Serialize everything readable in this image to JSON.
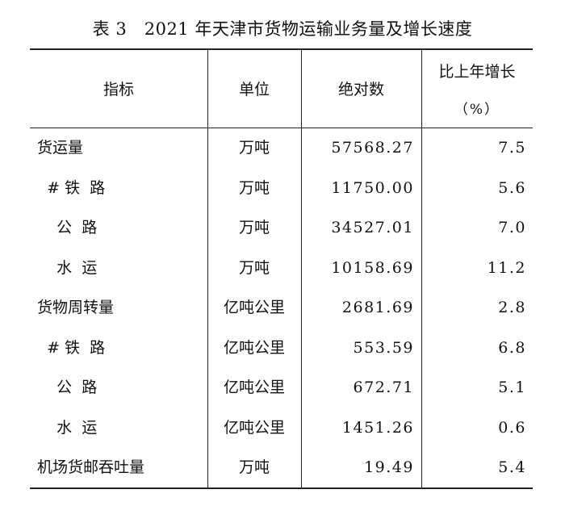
{
  "title": "表 3   2021 年天津市货物运输业务量及增长速度",
  "header": {
    "indicator": "指标",
    "unit": "单位",
    "value": "绝对数",
    "growth": "比上年增长",
    "growth_unit": "（%）"
  },
  "rows": [
    {
      "indicator": "货运量",
      "unit": "万吨",
      "value": "57568.27",
      "growth": "7.5"
    },
    {
      "indicator": "  # 铁  路",
      "unit": "万吨",
      "value": "11750.00",
      "growth": "5.6"
    },
    {
      "indicator": "    公  路",
      "unit": "万吨",
      "value": "34527.01",
      "growth": "7.0"
    },
    {
      "indicator": "    水  运",
      "unit": "万吨",
      "value": "10158.69",
      "growth": "11.2"
    },
    {
      "indicator": "货物周转量",
      "unit": "亿吨公里",
      "value": "2681.69",
      "growth": "2.8"
    },
    {
      "indicator": "  # 铁  路",
      "unit": "亿吨公里",
      "value": "553.59",
      "growth": "6.8"
    },
    {
      "indicator": "    公  路",
      "unit": "亿吨公里",
      "value": "672.71",
      "growth": "5.1"
    },
    {
      "indicator": "    水  运",
      "unit": "亿吨公里",
      "value": "1451.26",
      "growth": "0.6"
    },
    {
      "indicator": "机场货邮吞吐量",
      "unit": "万吨",
      "value": "19.49",
      "growth": "5.4"
    }
  ]
}
